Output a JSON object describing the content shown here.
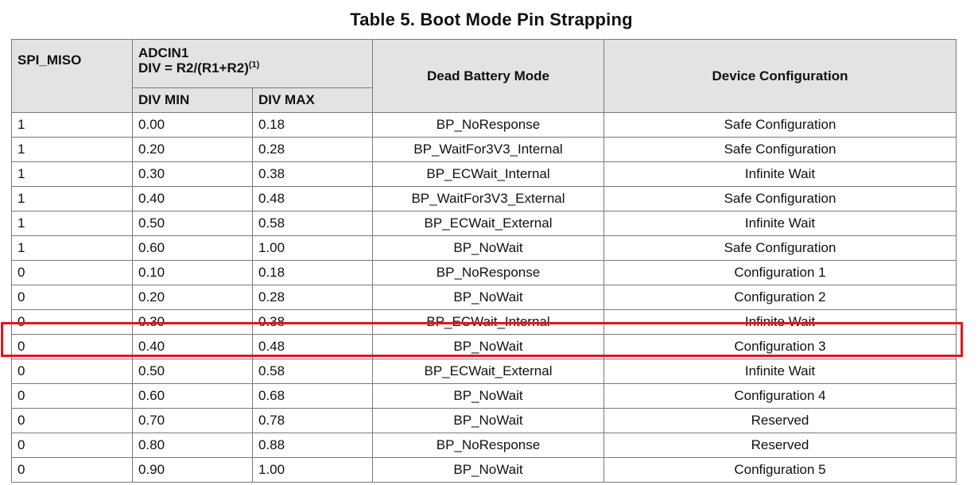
{
  "title": "Table 5. Boot Mode Pin Strapping",
  "columns": {
    "spi_miso": "SPI_MISO",
    "adcin1_line1": "ADCIN1",
    "adcin1_line2": "DIV = R2/(R1+R2)",
    "adcin1_note": "(1)",
    "div_min": "DIV MIN",
    "div_max": "DIV MAX",
    "dead_battery_mode": "Dead Battery Mode",
    "device_configuration": "Device Configuration"
  },
  "rows": [
    {
      "spi_miso": "1",
      "div_min": "0.00",
      "div_max": "0.18",
      "dead_battery_mode": "BP_NoResponse",
      "device_configuration": "Safe Configuration"
    },
    {
      "spi_miso": "1",
      "div_min": "0.20",
      "div_max": "0.28",
      "dead_battery_mode": "BP_WaitFor3V3_Internal",
      "device_configuration": "Safe Configuration"
    },
    {
      "spi_miso": "1",
      "div_min": "0.30",
      "div_max": "0.38",
      "dead_battery_mode": "BP_ECWait_Internal",
      "device_configuration": "Infinite Wait"
    },
    {
      "spi_miso": "1",
      "div_min": "0.40",
      "div_max": "0.48",
      "dead_battery_mode": "BP_WaitFor3V3_External",
      "device_configuration": "Safe Configuration"
    },
    {
      "spi_miso": "1",
      "div_min": "0.50",
      "div_max": "0.58",
      "dead_battery_mode": "BP_ECWait_External",
      "device_configuration": "Infinite Wait"
    },
    {
      "spi_miso": "1",
      "div_min": "0.60",
      "div_max": "1.00",
      "dead_battery_mode": "BP_NoWait",
      "device_configuration": "Safe Configuration"
    },
    {
      "spi_miso": "0",
      "div_min": "0.10",
      "div_max": "0.18",
      "dead_battery_mode": "BP_NoResponse",
      "device_configuration": "Configuration 1"
    },
    {
      "spi_miso": "0",
      "div_min": "0.20",
      "div_max": "0.28",
      "dead_battery_mode": "BP_NoWait",
      "device_configuration": "Configuration 2"
    },
    {
      "spi_miso": "0",
      "div_min": "0.30",
      "div_max": "0.38",
      "dead_battery_mode": "BP_ECWait_Internal",
      "device_configuration": "Infinite Wait"
    },
    {
      "spi_miso": "0",
      "div_min": "0.40",
      "div_max": "0.48",
      "dead_battery_mode": "BP_NoWait",
      "device_configuration": "Configuration 3"
    },
    {
      "spi_miso": "0",
      "div_min": "0.50",
      "div_max": "0.58",
      "dead_battery_mode": "BP_ECWait_External",
      "device_configuration": "Infinite Wait"
    },
    {
      "spi_miso": "0",
      "div_min": "0.60",
      "div_max": "0.68",
      "dead_battery_mode": "BP_NoWait",
      "device_configuration": "Configuration 4"
    },
    {
      "spi_miso": "0",
      "div_min": "0.70",
      "div_max": "0.78",
      "dead_battery_mode": "BP_NoWait",
      "device_configuration": "Reserved"
    },
    {
      "spi_miso": "0",
      "div_min": "0.80",
      "div_max": "0.88",
      "dead_battery_mode": "BP_NoResponse",
      "device_configuration": "Reserved"
    },
    {
      "spi_miso": "0",
      "div_min": "0.90",
      "div_max": "1.00",
      "dead_battery_mode": "BP_NoWait",
      "device_configuration": "Configuration 5"
    }
  ],
  "highlighted_row_index": 9,
  "colors": {
    "header_background": "#e3e3e3",
    "grid_lines": "#7a7a7a",
    "highlight_outline": "#e8141b"
  }
}
